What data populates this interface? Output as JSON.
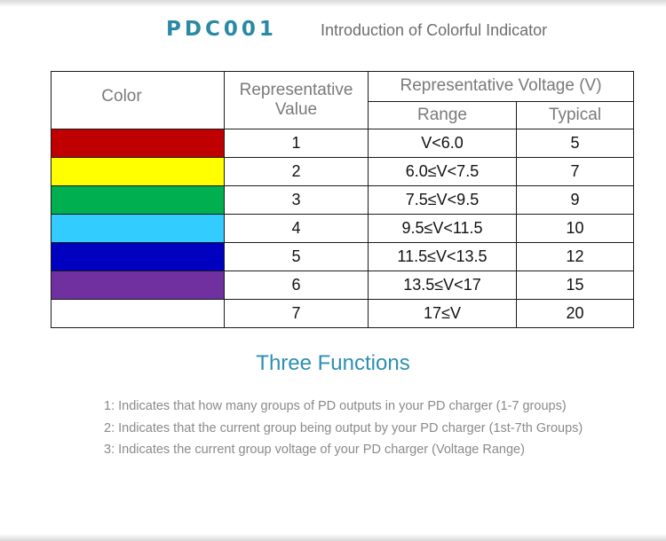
{
  "header": {
    "brand": "PDC001",
    "subtitle": "Introduction of Colorful Indicator"
  },
  "table": {
    "headers": {
      "color": "Color",
      "representative_value": "Representative Value",
      "voltage_group": "Representative Voltage (V)",
      "range": "Range",
      "typical": "Typical"
    },
    "rows": [
      {
        "color": "#c00000",
        "value": "1",
        "range": "V<6.0",
        "typical": "5"
      },
      {
        "color": "#ffff00",
        "value": "2",
        "range": "6.0≤V<7.5",
        "typical": "7"
      },
      {
        "color": "#00b050",
        "value": "3",
        "range": "7.5≤V<9.5",
        "typical": "9"
      },
      {
        "color": "#33ccff",
        "value": "4",
        "range": "9.5≤V<11.5",
        "typical": "10"
      },
      {
        "color": "#0000c0",
        "value": "5",
        "range": "11.5≤V<13.5",
        "typical": "12"
      },
      {
        "color": "#7030a0",
        "value": "6",
        "range": "13.5≤V<17",
        "typical": "15"
      },
      {
        "color": "#ffffff",
        "value": "7",
        "range": "17≤V",
        "typical": "20"
      }
    ]
  },
  "functions": {
    "title": "Three Functions",
    "items": [
      "1: Indicates that how many groups of PD outputs in your PD charger (1-7 groups)",
      "2: Indicates that the current group being output by your PD charger (1st-7th Groups)",
      "3: Indicates the current group voltage of your PD charger (Voltage Range)"
    ]
  }
}
